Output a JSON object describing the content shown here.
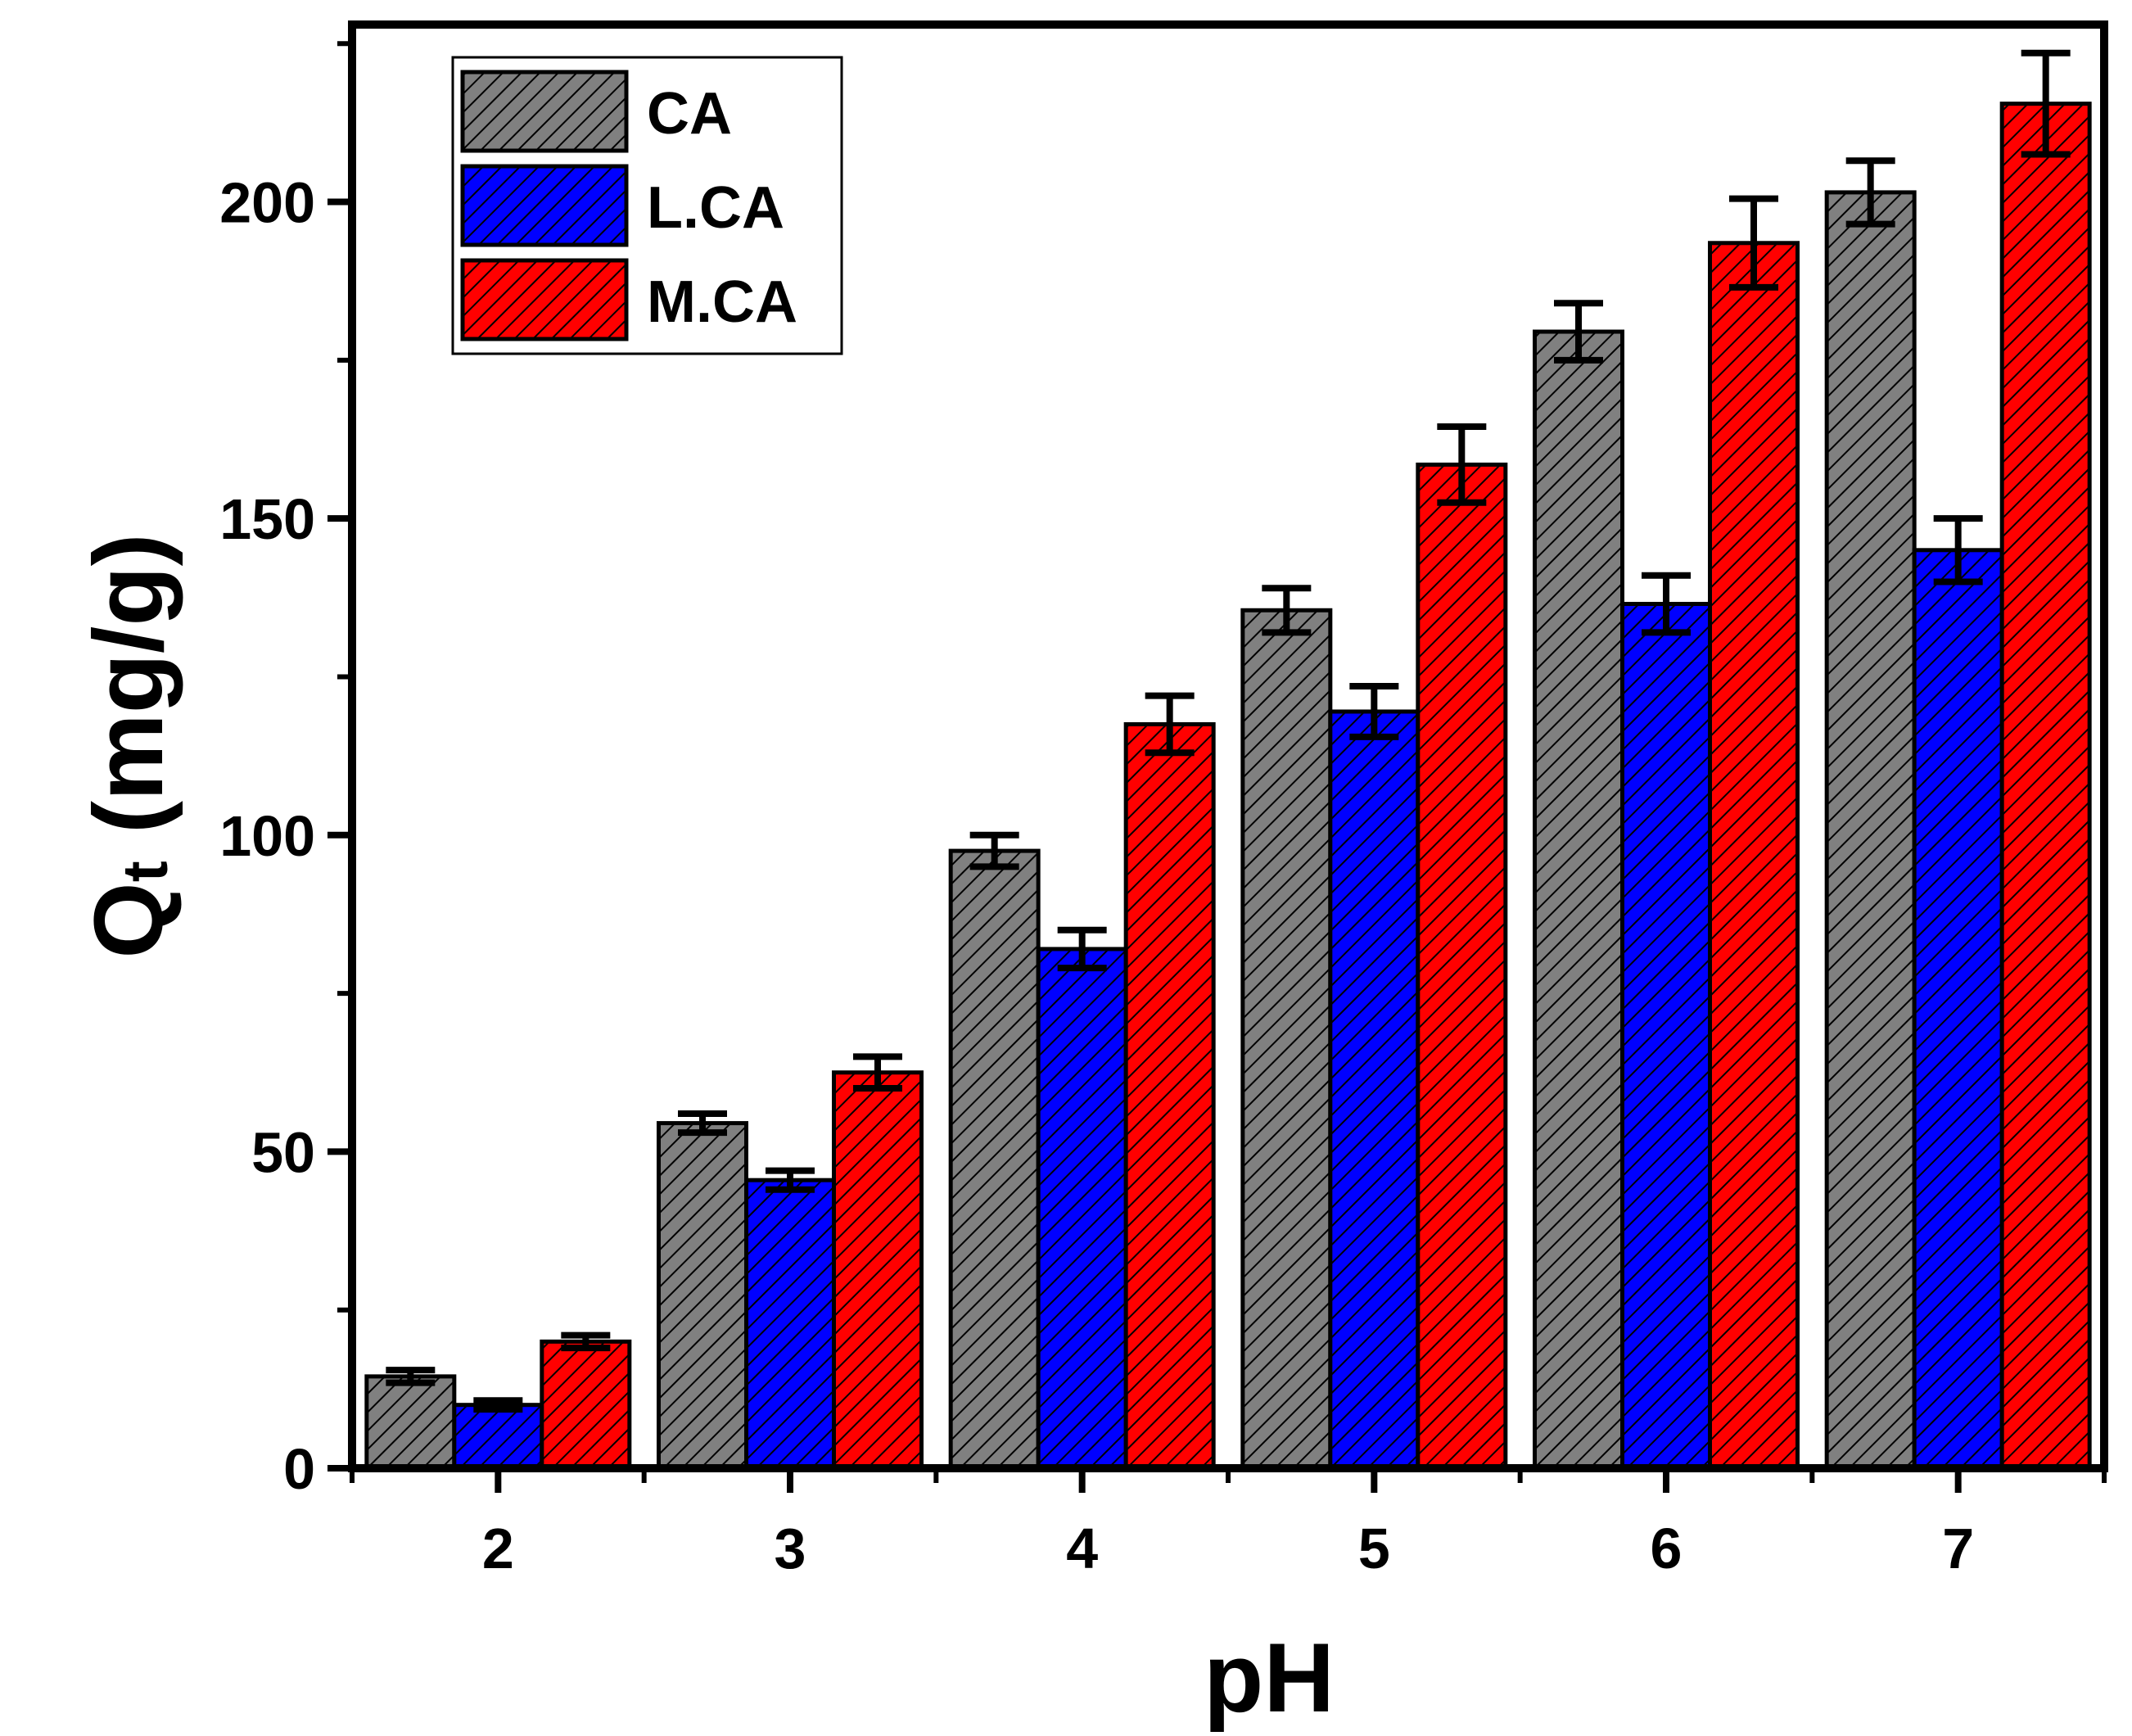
{
  "chart_data": {
    "type": "bar",
    "title": "",
    "xlabel": "pH",
    "ylabel_main": "Q",
    "ylabel_sub": "t",
    "ylabel_unit": " (mg/g)",
    "categories": [
      "2",
      "3",
      "4",
      "5",
      "6",
      "7"
    ],
    "ylim": [
      0,
      228
    ],
    "yticks": [
      0,
      50,
      100,
      150,
      200
    ],
    "ytick_labels": [
      "0",
      "50",
      "100",
      "150",
      "200"
    ],
    "series": [
      {
        "name": "CA",
        "color": "#808080",
        "values": [
          14.5,
          54.5,
          97.5,
          135.5,
          179.5,
          201.5
        ],
        "errors": [
          1.0,
          1.5,
          2.5,
          3.5,
          4.5,
          5.0
        ]
      },
      {
        "name": "L.CA",
        "color": "#0000ff",
        "values": [
          10.0,
          45.5,
          82.0,
          119.5,
          136.5,
          145.0
        ],
        "errors": [
          0.7,
          1.5,
          3.0,
          4.0,
          4.5,
          5.0
        ]
      },
      {
        "name": "M.CA",
        "color": "#ff0000",
        "values": [
          20.0,
          62.5,
          117.5,
          158.5,
          193.5,
          215.5
        ],
        "errors": [
          1.0,
          2.5,
          4.5,
          6.0,
          7.0,
          8.0
        ]
      }
    ],
    "legend_position": "top-left",
    "grid": false,
    "hatch": "diagonal"
  }
}
